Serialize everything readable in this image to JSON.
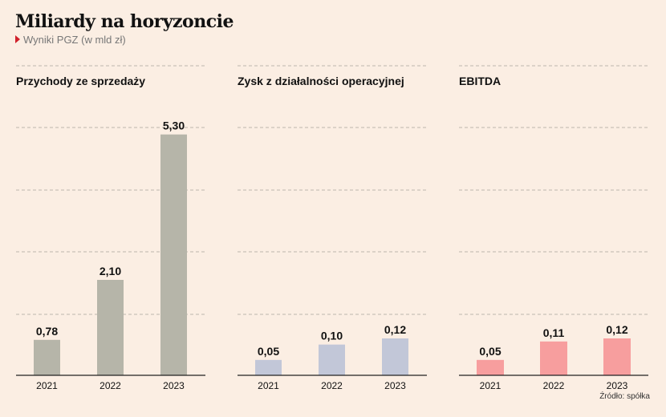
{
  "title": "Miliardy na horyzoncie",
  "subtitle": "Wyniki PGZ (w mld zł)",
  "source": "Źródło: spółka",
  "chart_data": [
    {
      "type": "bar",
      "title": "Przychody ze sprzedaży",
      "categories": [
        "2021",
        "2022",
        "2023"
      ],
      "values": [
        0.78,
        2.1,
        5.3
      ],
      "labels": [
        "0,78",
        "2,10",
        "5,30"
      ],
      "color": "#b6b5a9",
      "ylim": [
        0,
        6
      ],
      "grid": true
    },
    {
      "type": "bar",
      "title": "Zysk z działalności operacyjnej",
      "categories": [
        "2021",
        "2022",
        "2023"
      ],
      "values": [
        0.05,
        0.1,
        0.12
      ],
      "labels": [
        "0,05",
        "0,10",
        "0,12"
      ],
      "color": "#c2c7d8",
      "ylim": [
        0,
        0.12
      ],
      "grid": true
    },
    {
      "type": "bar",
      "title": "EBITDA",
      "categories": [
        "2021",
        "2022",
        "2023"
      ],
      "values": [
        0.05,
        0.11,
        0.12
      ],
      "labels": [
        "0,05",
        "0,11",
        "0,12"
      ],
      "color": "#f79e9e",
      "ylim": [
        0,
        0.12
      ],
      "grid": true
    }
  ]
}
